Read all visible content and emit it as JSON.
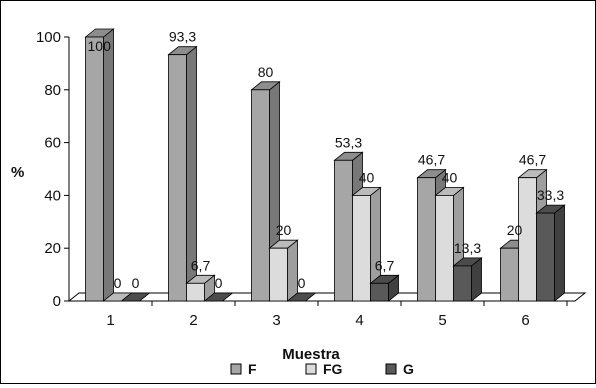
{
  "chart_data": {
    "type": "bar",
    "style": "3d-clustered",
    "title": "",
    "xlabel": "Muestra",
    "ylabel": "%",
    "ylim": [
      0,
      100
    ],
    "yticks": [
      "0",
      "20",
      "40",
      "60",
      "80",
      "100"
    ],
    "categories": [
      "1",
      "2",
      "3",
      "4",
      "5",
      "6"
    ],
    "series": [
      {
        "name": "F",
        "color": "#a6a6a6",
        "values": [
          100,
          93.3,
          80,
          53.3,
          46.7,
          20
        ],
        "labels": [
          "100",
          "93,3",
          "80",
          "53,3",
          "46,7",
          "20"
        ]
      },
      {
        "name": "FG",
        "color": "#dcdcdc",
        "values": [
          0,
          6.7,
          20,
          40,
          40,
          46.7
        ],
        "labels": [
          "0",
          "6,7",
          "20",
          "40",
          "40",
          "46,7"
        ]
      },
      {
        "name": "G",
        "color": "#595959",
        "values": [
          0,
          0,
          0,
          6.7,
          13.3,
          33.3
        ],
        "labels": [
          "0",
          "0",
          "0",
          "6,7",
          "13,3",
          "33,3"
        ]
      }
    ],
    "grid": false,
    "legend_position": "bottom"
  }
}
